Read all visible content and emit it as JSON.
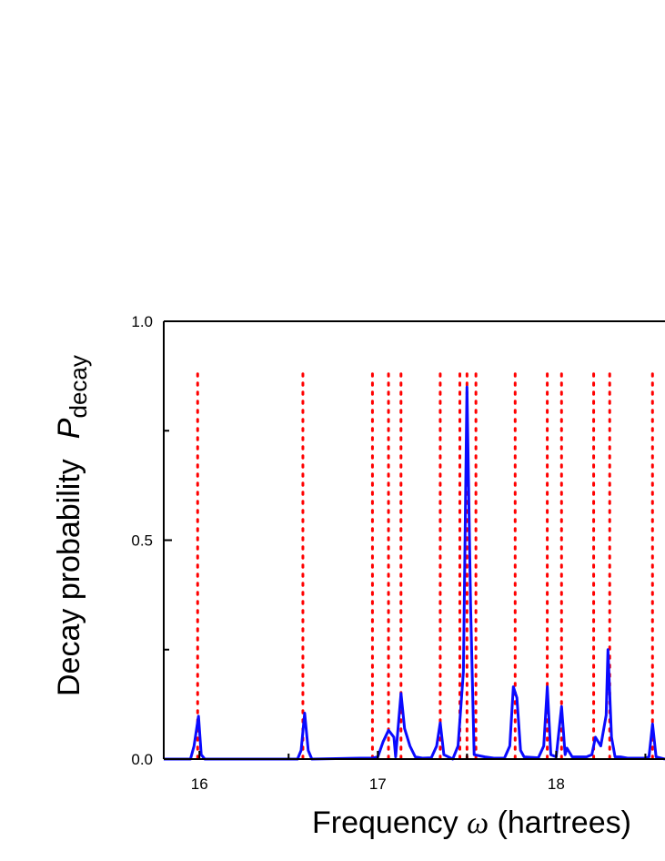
{
  "chart_data": {
    "type": "line",
    "title": "",
    "xlabel": "Frequency ω (hartrees)",
    "xlabel_parts": {
      "text": "Frequency ",
      "symbol": "ω",
      "unit": " (hartrees)"
    },
    "ylabel_parts": {
      "text": "Decay probability",
      "symbol": "P",
      "subscript": "decay"
    },
    "xlim": [
      15.8,
      18.61
    ],
    "ylim": [
      0,
      1.0
    ],
    "x_ticks": [
      16,
      17,
      18
    ],
    "x_tick_labels": [
      "16",
      "17",
      "18"
    ],
    "x_minor_ticks": [
      16.5,
      17.5,
      18.5
    ],
    "y_ticks": [
      0.0,
      0.5,
      1.0
    ],
    "y_tick_labels": [
      "0.0",
      "0.5",
      "1.0"
    ],
    "y_minor_ticks": [
      0.25,
      0.75
    ],
    "grid": false,
    "colors": {
      "curve": "#0a0aff",
      "reference_lines": "#ff0000",
      "axes": "#000000"
    },
    "reference_lines": {
      "style": "dotted",
      "height": 0.88,
      "x": [
        15.99,
        16.58,
        16.97,
        17.06,
        17.13,
        17.35,
        17.46,
        17.5,
        17.55,
        17.77,
        17.95,
        18.03,
        18.21,
        18.3,
        18.54
      ]
    },
    "series": [
      {
        "points": [
          [
            15.8,
            0
          ],
          [
            15.95,
            0
          ],
          [
            15.97,
            0.03
          ],
          [
            15.995,
            0.098
          ],
          [
            16.01,
            0.01
          ],
          [
            16.03,
            0
          ],
          [
            16.3,
            0
          ],
          [
            16.55,
            0
          ],
          [
            16.57,
            0.02
          ],
          [
            16.59,
            0.105
          ],
          [
            16.61,
            0.02
          ],
          [
            16.63,
            0
          ],
          [
            16.9,
            0.002
          ],
          [
            16.97,
            0.002
          ],
          [
            17.0,
            0.005
          ],
          [
            17.03,
            0.04
          ],
          [
            17.06,
            0.066
          ],
          [
            17.09,
            0.05
          ],
          [
            17.1,
            0.005
          ],
          [
            17.13,
            0.15
          ],
          [
            17.15,
            0.07
          ],
          [
            17.18,
            0.03
          ],
          [
            17.21,
            0.005
          ],
          [
            17.25,
            0.002
          ],
          [
            17.3,
            0.003
          ],
          [
            17.33,
            0.03
          ],
          [
            17.35,
            0.083
          ],
          [
            17.37,
            0.01
          ],
          [
            17.42,
            0
          ],
          [
            17.45,
            0.03
          ],
          [
            17.48,
            0.2
          ],
          [
            17.5,
            0.85
          ],
          [
            17.52,
            0.35
          ],
          [
            17.54,
            0.01
          ],
          [
            17.6,
            0.005
          ],
          [
            17.65,
            0.002
          ],
          [
            17.71,
            0.002
          ],
          [
            17.74,
            0.03
          ],
          [
            17.76,
            0.165
          ],
          [
            17.78,
            0.14
          ],
          [
            17.8,
            0.02
          ],
          [
            17.82,
            0.005
          ],
          [
            17.9,
            0.003
          ],
          [
            17.93,
            0.03
          ],
          [
            17.95,
            0.165
          ],
          [
            17.97,
            0.01
          ],
          [
            18.0,
            0.005
          ],
          [
            18.03,
            0.12
          ],
          [
            18.05,
            0.01
          ],
          [
            18.06,
            0.025
          ],
          [
            18.09,
            0.005
          ],
          [
            18.17,
            0.005
          ],
          [
            18.2,
            0.01
          ],
          [
            18.22,
            0.05
          ],
          [
            18.25,
            0.03
          ],
          [
            18.28,
            0.1
          ],
          [
            18.29,
            0.25
          ],
          [
            18.31,
            0.05
          ],
          [
            18.33,
            0.005
          ],
          [
            18.36,
            0.005
          ],
          [
            18.4,
            0.002
          ],
          [
            18.5,
            0.002
          ],
          [
            18.52,
            0.005
          ],
          [
            18.54,
            0.08
          ],
          [
            18.56,
            0.005
          ],
          [
            18.62,
            0
          ]
        ]
      }
    ]
  }
}
